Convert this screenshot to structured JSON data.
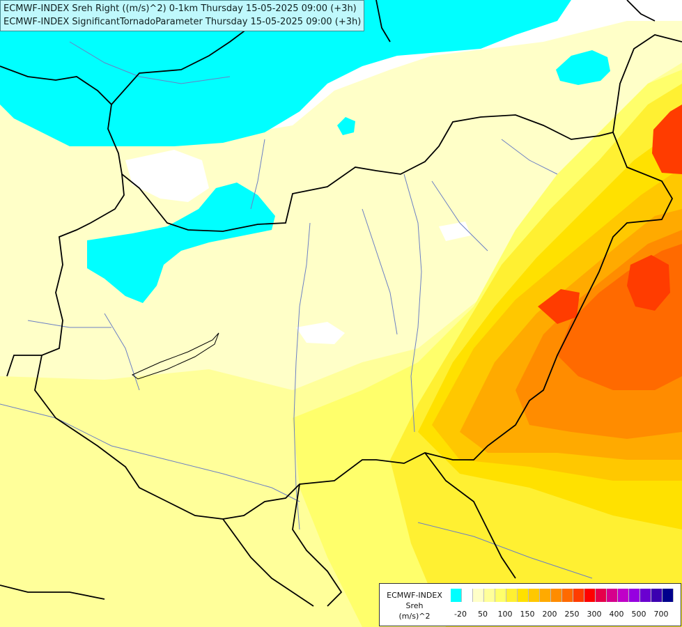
{
  "title": {
    "line1": "ECMWF-INDEX Sreh Right ((m/s)^2) 0-1km Thursday 15-05-2025 09:00 (+3h)",
    "line2": "ECMWF-INDEX SignificantTornadoParameter Thursday 15-05-2025 09:00 (+3h)"
  },
  "legend": {
    "line1": "ECMWF-INDEX",
    "line2": "Sreh",
    "line3": "(m/s)^2",
    "colors": [
      "#00ffff",
      "#ffffff",
      "#ffffc8",
      "#ffff9a",
      "#ffff6b",
      "#fff032",
      "#ffe100",
      "#ffc800",
      "#ffaa00",
      "#ff8c00",
      "#ff6a00",
      "#ff3c00",
      "#ff0000",
      "#e6004a",
      "#d6008c",
      "#c000c8",
      "#9600e0",
      "#6a00d0",
      "#3c00b0",
      "#00008c"
    ],
    "tick_labels": [
      "-20",
      "50",
      "100",
      "150",
      "200",
      "250",
      "300",
      "400",
      "500",
      "700"
    ]
  },
  "map_colors": {
    "base": "#ffffc8",
    "cyan": "#00ffff",
    "white": "#ffffff",
    "yellow1": "#ffff9a",
    "yellow2": "#ffff6b",
    "yellow3": "#fff032",
    "yellow4": "#ffe100",
    "orange1": "#ffc800",
    "orange2": "#ffaa00",
    "orange3": "#ff8c00",
    "red1": "#ff6a00",
    "red2": "#ff3c00",
    "border": "#000000",
    "river": "#6b7fc4"
  }
}
